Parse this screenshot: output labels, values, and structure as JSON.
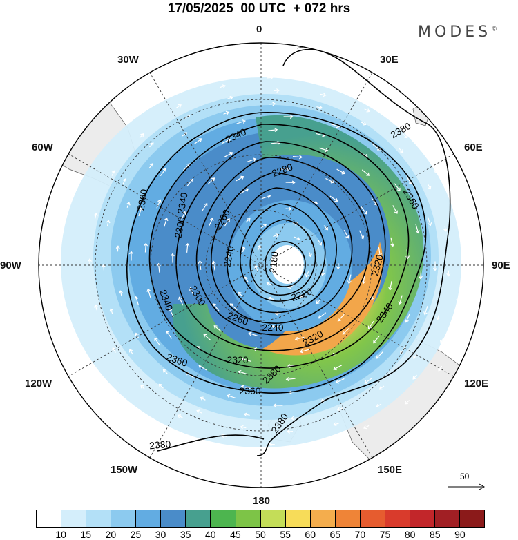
{
  "title": "17/05/2025  00 UTC  + 072 hrs",
  "brand": "MODES",
  "brand_mark": "©",
  "longitude_labels": {
    "top": "0",
    "bottom": "180",
    "lon30w": "30W",
    "lon30e": "30E",
    "lon60w": "60W",
    "lon60e": "60E",
    "lon90w": "90W",
    "lon90e": "90E",
    "lon120w": "120W",
    "lon120e": "120E",
    "lon150w": "150W",
    "lon150e": "150E"
  },
  "contour_labels": [
    "2380",
    "2380",
    "2360",
    "2360",
    "2360",
    "2360",
    "2340",
    "2340",
    "2340",
    "2340",
    "2320",
    "2320",
    "2320",
    "2300",
    "2300",
    "2280",
    "2260",
    "2260",
    "2240",
    "2240",
    "2220",
    "2180",
    "2380",
    "2380"
  ],
  "vector_reference": "50",
  "colorbar": {
    "ticks": [
      "10",
      "15",
      "20",
      "25",
      "30",
      "35",
      "40",
      "45",
      "50",
      "55",
      "60",
      "65",
      "70",
      "75",
      "80",
      "85",
      "90"
    ],
    "colors": [
      "#ffffff",
      "#d4eefb",
      "#b3e0f7",
      "#8ccaef",
      "#62ace2",
      "#4a8cc9",
      "#47a08f",
      "#4db54f",
      "#7dc447",
      "#c4dd58",
      "#f7dc59",
      "#f4ad4d",
      "#ef8437",
      "#e65c2f",
      "#d93b2c",
      "#c2262a",
      "#a11f24",
      "#8b1a1a"
    ]
  },
  "icons": {
    "vector_arrow": "arrow-right-icon"
  }
}
